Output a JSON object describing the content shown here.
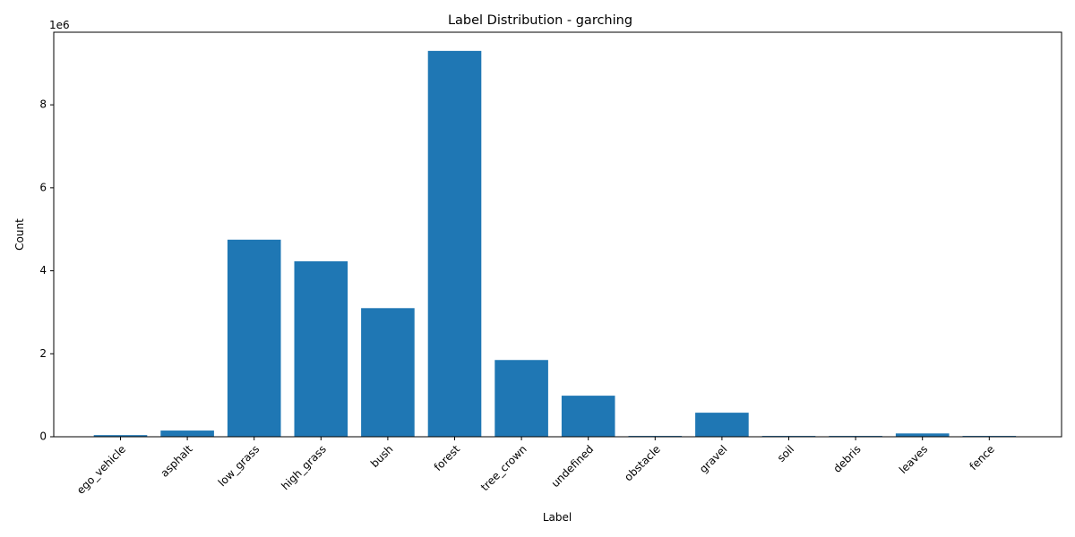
{
  "chart_data": {
    "type": "bar",
    "title": "Label Distribution - garching",
    "xlabel": "Label",
    "ylabel": "Count",
    "y_offset_label": "1e6",
    "y_scale": 1000000,
    "ylim": [
      0,
      9.75
    ],
    "yticks": [
      0,
      2,
      4,
      6,
      8
    ],
    "ytick_labels": [
      "0",
      "2",
      "4",
      "6",
      "8"
    ],
    "categories": [
      "ego_vehicle",
      "asphalt",
      "low_grass",
      "high_grass",
      "bush",
      "forest",
      "tree_crown",
      "undefined",
      "obstacle",
      "gravel",
      "soil",
      "debris",
      "leaves",
      "fence"
    ],
    "values": [
      0.04,
      0.15,
      4.75,
      4.23,
      3.1,
      9.3,
      1.85,
      0.99,
      0.02,
      0.58,
      0.02,
      0.02,
      0.08,
      0.02
    ],
    "bar_color": "#1f77b4",
    "grid": false,
    "legend": "none"
  }
}
